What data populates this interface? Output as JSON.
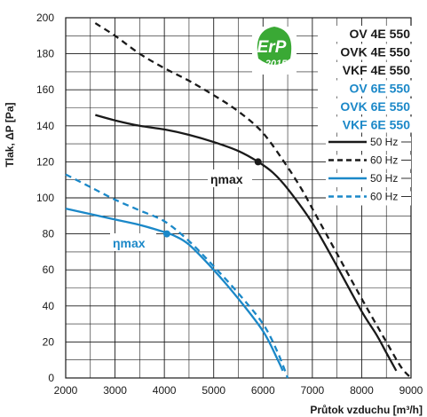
{
  "chart_data": {
    "type": "line",
    "xlabel": "Průtok vzduchu [m³/h]",
    "ylabel": "Tlak, ΔP [Pa]",
    "xlim": [
      2000,
      9000
    ],
    "ylim": [
      0,
      200
    ],
    "x_ticks": [
      "2000",
      "3000",
      "4000",
      "5000",
      "6000",
      "7000",
      "8000",
      "9000"
    ],
    "y_ticks": [
      "0",
      "20",
      "40",
      "60",
      "80",
      "100",
      "120",
      "140",
      "160",
      "180",
      "200"
    ],
    "grid": true,
    "colors": {
      "black": "#1a1a1a",
      "blue": "#1b88c8",
      "erp_green": "#3aa935"
    },
    "models_black": [
      "OV 4E 550",
      "OVK 4E 550",
      "VKF 4E 550"
    ],
    "models_blue": [
      "OV 6E 550",
      "OVK 6E 550",
      "VKF 6E 550"
    ],
    "legend": [
      {
        "label": "50 Hz",
        "color": "#1a1a1a",
        "dash": false
      },
      {
        "label": "60 Hz",
        "color": "#1a1a1a",
        "dash": true
      },
      {
        "label": "50 Hz",
        "color": "#1b88c8",
        "dash": false
      },
      {
        "label": "60 Hz",
        "color": "#1b88c8",
        "dash": true
      }
    ],
    "badge": {
      "text": "ErP",
      "year": "2015"
    },
    "series": [
      {
        "group": "4E",
        "freq": "50 Hz",
        "color": "#1a1a1a",
        "dash": false,
        "x": [
          2600,
          3000,
          3500,
          4000,
          4500,
          5000,
          5500,
          5900,
          6200,
          6500,
          7000,
          7500,
          8000,
          8300,
          8500,
          8700
        ],
        "y": [
          146,
          143,
          140,
          138,
          135,
          131,
          126,
          120,
          114,
          105,
          86,
          62,
          37,
          24,
          14,
          4
        ]
      },
      {
        "group": "4E",
        "freq": "60 Hz",
        "color": "#1a1a1a",
        "dash": true,
        "x": [
          2600,
          3000,
          3500,
          4000,
          4500,
          5000,
          5500,
          6000,
          6500,
          6800,
          7000,
          7500,
          8000,
          8500,
          8800,
          9000
        ],
        "y": [
          197,
          190,
          180,
          172,
          165,
          157,
          148,
          136,
          117,
          104,
          94,
          69,
          44,
          20,
          6,
          0
        ]
      },
      {
        "group": "6E",
        "freq": "50 Hz",
        "color": "#1b88c8",
        "dash": false,
        "x": [
          2000,
          2500,
          3000,
          3500,
          4000,
          4200,
          4500,
          5000,
          5500,
          6000,
          6300,
          6400
        ],
        "y": [
          94,
          91,
          88,
          85,
          81,
          79,
          74,
          60,
          44,
          26,
          10,
          4
        ]
      },
      {
        "group": "6E",
        "freq": "60 Hz",
        "color": "#1b88c8",
        "dash": true,
        "x": [
          2000,
          2500,
          3000,
          3500,
          4000,
          4500,
          5000,
          5500,
          6000,
          6300,
          6500
        ],
        "y": [
          113,
          106,
          99,
          93,
          87,
          76,
          62,
          47,
          30,
          14,
          0
        ]
      }
    ],
    "annotations": [
      {
        "text": "ηmax",
        "x": 5900,
        "y": 120,
        "color": "#1a1a1a"
      },
      {
        "text": "ηmax",
        "x": 4050,
        "y": 80,
        "color": "#1b88c8"
      }
    ]
  }
}
